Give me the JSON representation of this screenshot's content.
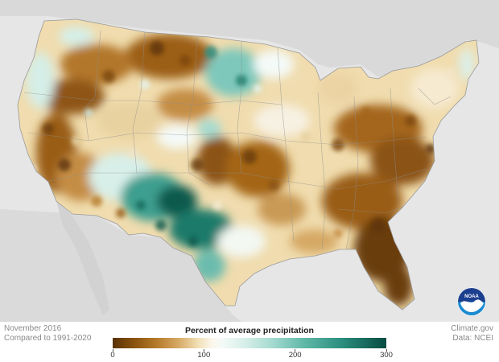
{
  "footer": {
    "period": "November 2016",
    "baseline": "Compared to 1991-2020",
    "source_site": "Climate.gov",
    "data_source": "Data: NCEI"
  },
  "legend": {
    "title": "Percent of average precipitation",
    "ticks": [
      "0",
      "100",
      "200",
      "300"
    ],
    "tick_values": [
      0,
      100,
      200,
      300
    ],
    "range": [
      0,
      300
    ],
    "colors": {
      "dry": "#5a3206",
      "normal": "#fbf6ea",
      "wet": "#074b41"
    }
  },
  "logo": {
    "text": "NOAA",
    "colors": {
      "top": "#1c3f8f",
      "bottom": "#1a8ad1"
    }
  },
  "map": {
    "background": "#e6e6e6",
    "land_outside": "#d8d8d8"
  }
}
